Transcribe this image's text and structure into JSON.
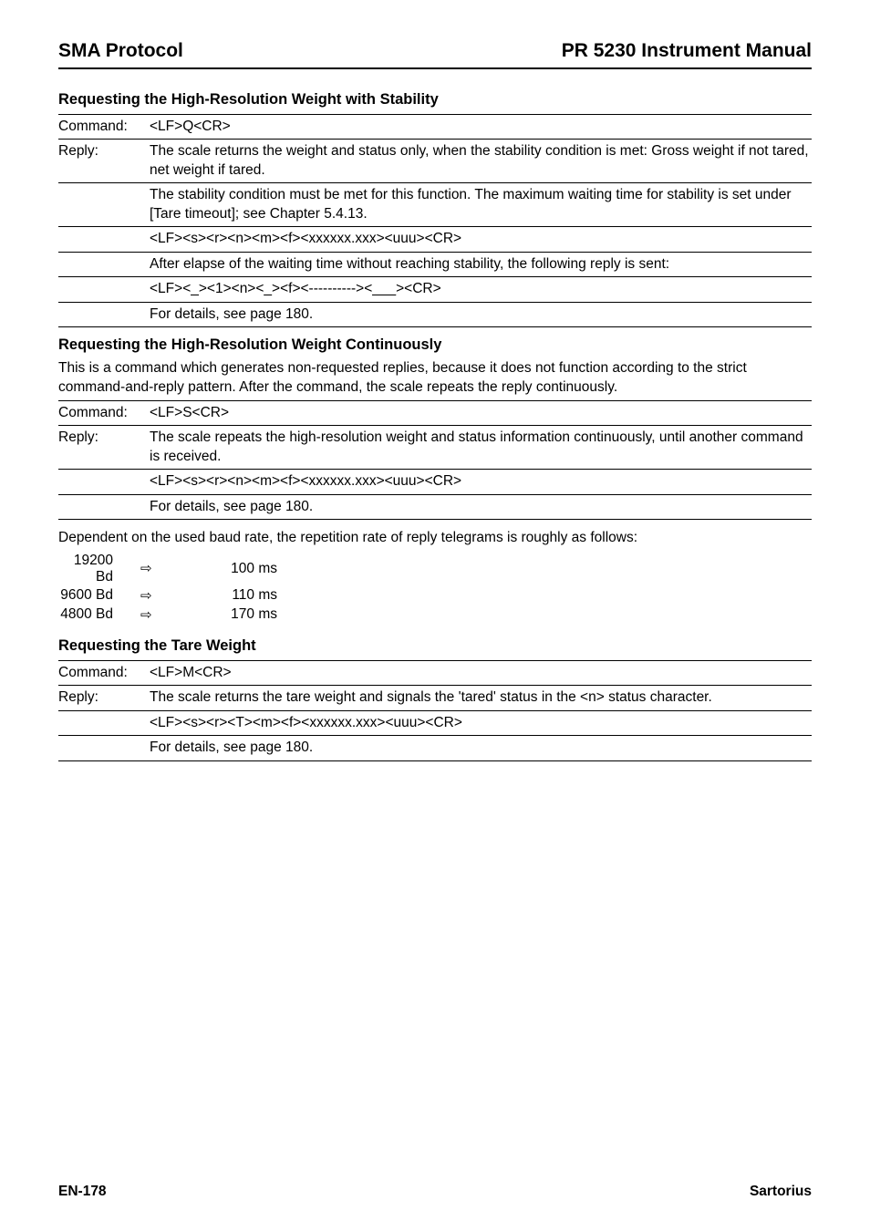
{
  "header": {
    "left": "SMA Protocol",
    "right": "PR 5230 Instrument Manual"
  },
  "section1": {
    "heading": "Requesting the High-Resolution Weight with Stability",
    "rows": [
      {
        "label": "Command:",
        "text": "<LF>Q<CR>"
      },
      {
        "label": "Reply:",
        "text": "The scale returns the weight and status only, when the stability condition is met: Gross weight if not tared, net weight if tared."
      },
      {
        "label": "",
        "text": "The stability condition must be met for this function. The maximum waiting time for stability is set under [Tare timeout]; see Chapter 5.4.13."
      },
      {
        "label": "",
        "text": "<LF><s><r><n><m><f><xxxxxx.xxx><uuu><CR>"
      },
      {
        "label": "",
        "text": "After elapse of the waiting time without reaching stability, the following reply is sent:"
      },
      {
        "label": "",
        "text": "<LF><_><1><n><_><f><----------><___><CR>"
      },
      {
        "label": "",
        "text": "For details, see page 180."
      }
    ]
  },
  "section2": {
    "heading": "Requesting the High-Resolution Weight Continuously",
    "intro": "This is a command which generates non-requested replies, because it does not function according to the strict command-and-reply pattern. After the command, the scale repeats the reply continuously.",
    "rows": [
      {
        "label": "Command:",
        "text": "<LF>S<CR>"
      },
      {
        "label": "Reply:",
        "text": "The scale repeats the high-resolution weight and status information continuously, until another command is received."
      },
      {
        "label": "",
        "text": "<LF><s><r><n><m><f><xxxxxx.xxx><uuu><CR>"
      },
      {
        "label": "",
        "text": "For details, see page 180."
      }
    ],
    "dependent": "Dependent on the used baud rate, the repetition rate of reply telegrams is roughly as follows:",
    "rates": [
      {
        "bd": "19200 Bd",
        "arrow": "⇨",
        "ms": "100 ms"
      },
      {
        "bd": "9600 Bd",
        "arrow": "⇨",
        "ms": "110 ms"
      },
      {
        "bd": "4800 Bd",
        "arrow": "⇨",
        "ms": "170 ms"
      }
    ]
  },
  "section3": {
    "heading": "Requesting the Tare Weight",
    "rows": [
      {
        "label": "Command:",
        "text": "<LF>M<CR>"
      },
      {
        "label": "Reply:",
        "text": "The scale returns the tare weight and signals the 'tared' status in the <n> status character."
      },
      {
        "label": "",
        "text": "<LF><s><r><T><m><f><xxxxxx.xxx><uuu><CR>"
      },
      {
        "label": "",
        "text": "For details, see page 180."
      }
    ]
  },
  "footer": {
    "left": "EN-178",
    "right": "Sartorius"
  }
}
